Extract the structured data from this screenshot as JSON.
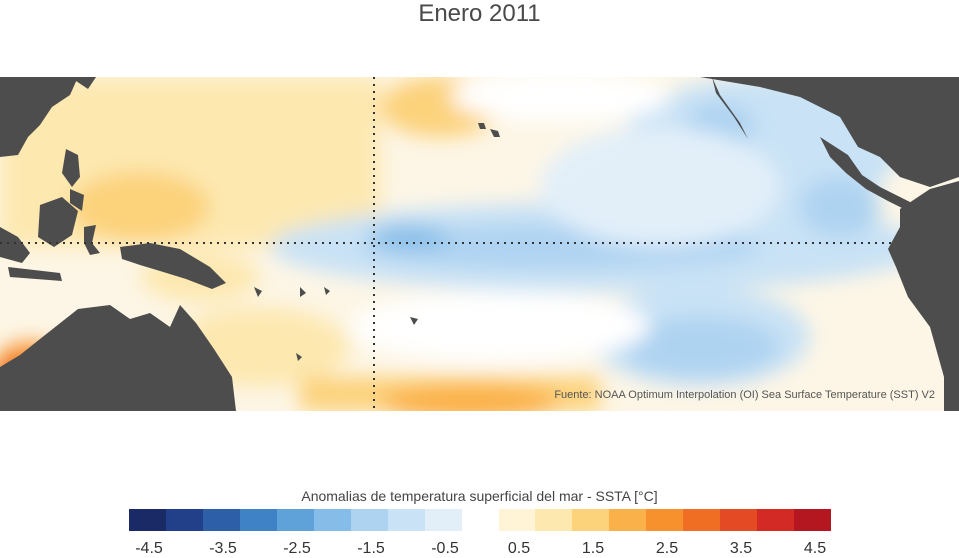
{
  "title": "Enero 2011",
  "source": "Fuente: NOAA Optimum Interpolation (OI) Sea Surface Temperature (SST) V2",
  "colorbar": {
    "label": "Anomalias de temperatura superficial del mar - SSTA  [°C]",
    "colors": [
      "#1a2a66",
      "#223f8a",
      "#2d5ea8",
      "#3f82c5",
      "#5fa2da",
      "#86bde8",
      "#aed3f1",
      "#c9e2f5",
      "#e2eff9",
      "#ffffff",
      "#fff5d6",
      "#fde8b0",
      "#fcd27a",
      "#fbb14a",
      "#f7912e",
      "#f06e24",
      "#e44a24",
      "#d42a26",
      "#b4171f"
    ],
    "ticks": [
      "-4.5",
      "-3.5",
      "-2.5",
      "-1.5",
      "-0.5",
      "0.5",
      "1.5",
      "2.5",
      "3.5",
      "4.5"
    ]
  }
}
